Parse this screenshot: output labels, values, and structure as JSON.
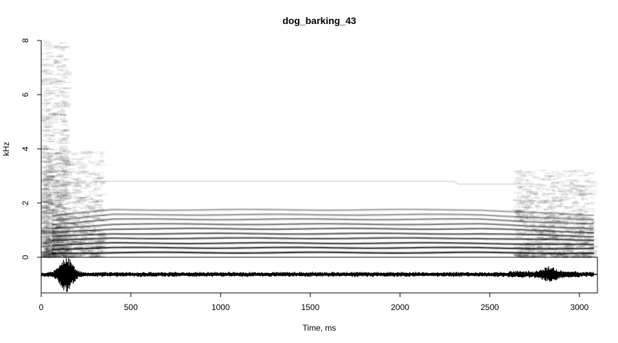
{
  "chart_data": {
    "type": "heatmap",
    "subtype": "spectrogram-with-oscillogram",
    "title": "dog_barking_43",
    "xlabel": "Time, ms",
    "ylabel": "kHz",
    "xlim": [
      0,
      3100
    ],
    "ylim": [
      0,
      8
    ],
    "x_ticks": [
      0,
      500,
      1000,
      1500,
      2000,
      2500,
      3000
    ],
    "y_ticks": [
      0,
      2,
      4,
      6,
      8
    ],
    "colorscale": [
      "#ffffff",
      "#000000"
    ],
    "duration_ms": 3080,
    "fundamental_khz": 0.17,
    "harmonics_khz": [
      0.35,
      0.52,
      0.7,
      0.87,
      1.05,
      1.22,
      1.4,
      1.57,
      1.75
    ],
    "weak_band_khz": 2.8,
    "noise_regions": [
      {
        "t_start": 0,
        "t_end": 350,
        "f_max": 3.9
      },
      {
        "t_start": 0,
        "t_end": 150,
        "f_max": 8
      },
      {
        "t_start": 2650,
        "t_end": 3080,
        "f_max": 3.2
      }
    ],
    "oscillogram": {
      "peaks": [
        {
          "t": 140,
          "amplitude": 1.0
        },
        {
          "t": 2830,
          "amplitude": 0.3
        }
      ]
    }
  }
}
